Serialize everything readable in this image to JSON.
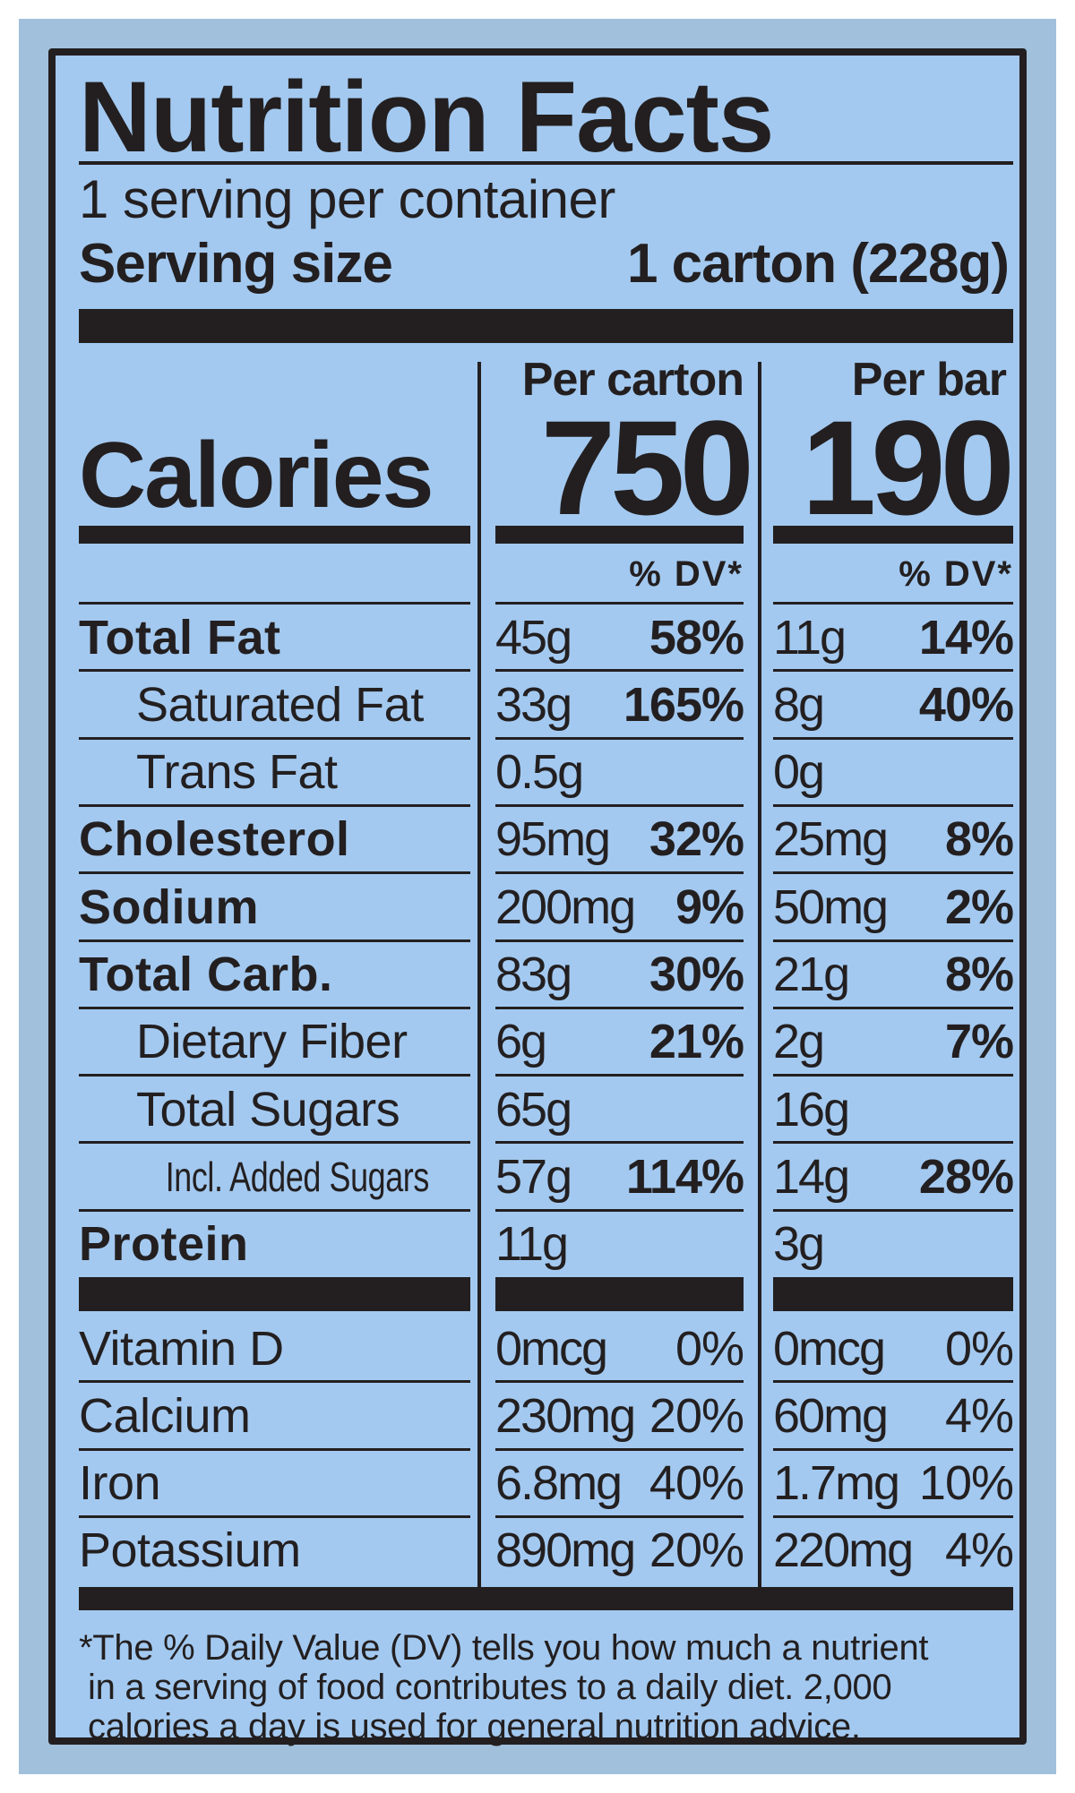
{
  "title": "Nutrition Facts",
  "servings_per_container": "1 serving per container",
  "serving_size_label": "Serving size",
  "serving_size_value": "1 carton (228g)",
  "columns": [
    {
      "header": "Per carton",
      "calories": "750",
      "dv_label": "% DV*"
    },
    {
      "header": "Per bar",
      "calories": "190",
      "dv_label": "% DV*"
    }
  ],
  "calories_label": "Calories",
  "nutrients": [
    {
      "label": "Total Fat",
      "style": "bold",
      "carton": {
        "amount": "45g",
        "dv": "58%"
      },
      "bar": {
        "amount": "11g",
        "dv": "14%"
      }
    },
    {
      "label": "Saturated Fat",
      "style": "indent",
      "carton": {
        "amount": "33g",
        "dv": "165%"
      },
      "bar": {
        "amount": "8g",
        "dv": "40%"
      }
    },
    {
      "label": "Trans Fat",
      "style": "indent",
      "carton": {
        "amount": "0.5g",
        "dv": ""
      },
      "bar": {
        "amount": "0g",
        "dv": ""
      }
    },
    {
      "label": "Cholesterol",
      "style": "bold",
      "carton": {
        "amount": "95mg",
        "dv": "32%"
      },
      "bar": {
        "amount": "25mg",
        "dv": "8%"
      }
    },
    {
      "label": "Sodium",
      "style": "bold",
      "carton": {
        "amount": "200mg",
        "dv": "9%"
      },
      "bar": {
        "amount": "50mg",
        "dv": "2%"
      }
    },
    {
      "label": "Total Carb.",
      "style": "bold",
      "carton": {
        "amount": "83g",
        "dv": "30%"
      },
      "bar": {
        "amount": "21g",
        "dv": "8%"
      }
    },
    {
      "label": "Dietary Fiber",
      "style": "indent",
      "carton": {
        "amount": "6g",
        "dv": "21%"
      },
      "bar": {
        "amount": "2g",
        "dv": "7%"
      }
    },
    {
      "label": "Total Sugars",
      "style": "indent",
      "carton": {
        "amount": "65g",
        "dv": ""
      },
      "bar": {
        "amount": "16g",
        "dv": ""
      }
    },
    {
      "label": "Incl. Added Sugars",
      "style": "indent2",
      "carton": {
        "amount": "57g",
        "dv": "114%"
      },
      "bar": {
        "amount": "14g",
        "dv": "28%"
      }
    },
    {
      "label": "Protein",
      "style": "bold",
      "carton": {
        "amount": "11g",
        "dv": ""
      },
      "bar": {
        "amount": "3g",
        "dv": ""
      }
    }
  ],
  "vitamins": [
    {
      "label": "Vitamin D",
      "carton": {
        "amount": "0mcg",
        "dv": "0%"
      },
      "bar": {
        "amount": "0mcg",
        "dv": "0%"
      }
    },
    {
      "label": "Calcium",
      "carton": {
        "amount": "230mg",
        "dv": "20%"
      },
      "bar": {
        "amount": "60mg",
        "dv": "4%"
      }
    },
    {
      "label": "Iron",
      "carton": {
        "amount": "6.8mg",
        "dv": "40%"
      },
      "bar": {
        "amount": "1.7mg",
        "dv": "10%"
      }
    },
    {
      "label": "Potassium",
      "carton": {
        "amount": "890mg",
        "dv": "20%"
      },
      "bar": {
        "amount": "220mg",
        "dv": "4%"
      }
    }
  ],
  "footnote": [
    "*The % Daily Value (DV) tells you how much a nutrient",
    "in a serving of food contributes to a daily diet. 2,000",
    "calories a day is used for general nutrition advice."
  ],
  "colors": {
    "outer": "#a0c0dc",
    "panel": "#a3c9f0",
    "ink": "#231f20"
  }
}
